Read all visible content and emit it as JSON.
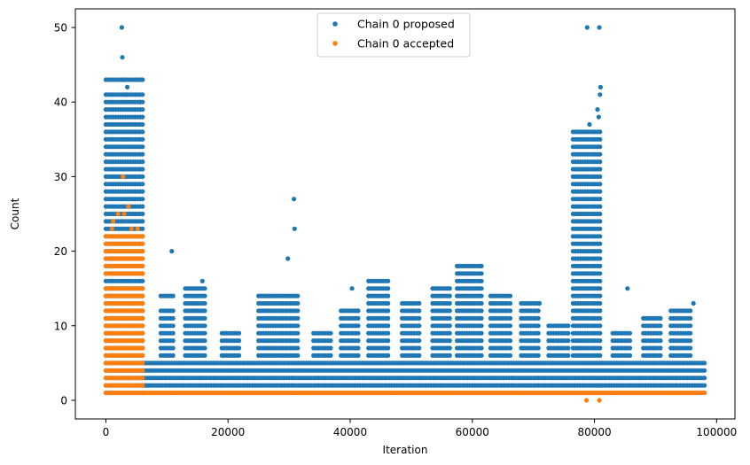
{
  "chart_data": {
    "type": "scatter",
    "title": "",
    "xlabel": "Iteration",
    "ylabel": "Count",
    "xlim": [
      -5000,
      103000
    ],
    "ylim": [
      -2.5,
      52.5
    ],
    "xticks": [
      0,
      20000,
      40000,
      60000,
      80000,
      100000
    ],
    "yticks": [
      0,
      10,
      20,
      30,
      40,
      50
    ],
    "grid": false,
    "legend_position": "top-center",
    "series": [
      {
        "name": "Chain 0 proposed",
        "color": "#1f77b4",
        "clusters": [
          {
            "x_start": 0,
            "x_end": 6000,
            "y_values": [
              1,
              2,
              3,
              4,
              5,
              6,
              7,
              8,
              9,
              10,
              11,
              12,
              13,
              14,
              15,
              16,
              17,
              18,
              19,
              20,
              21,
              22,
              23,
              24,
              25,
              26,
              27,
              28,
              29,
              30,
              31,
              32,
              33,
              34,
              35,
              36,
              37,
              38,
              39,
              40,
              41,
              43
            ]
          },
          {
            "x_start": 6000,
            "x_end": 98000,
            "y_values": [
              1,
              2,
              3,
              4,
              5
            ]
          },
          {
            "x_start": 9000,
            "x_end": 11000,
            "y_values": [
              6,
              7,
              8,
              9,
              10,
              11,
              12,
              14
            ]
          },
          {
            "x_start": 13000,
            "x_end": 16500,
            "y_values": [
              6,
              7,
              8,
              9,
              10,
              11,
              12,
              13,
              14,
              15
            ]
          },
          {
            "x_start": 19000,
            "x_end": 22000,
            "y_values": [
              6,
              7,
              8,
              9
            ]
          },
          {
            "x_start": 25000,
            "x_end": 31500,
            "y_values": [
              6,
              7,
              8,
              9,
              10,
              11,
              12,
              13,
              14
            ]
          },
          {
            "x_start": 34000,
            "x_end": 37000,
            "y_values": [
              6,
              7,
              8,
              9
            ]
          },
          {
            "x_start": 38500,
            "x_end": 41500,
            "y_values": [
              6,
              7,
              8,
              9,
              10,
              11,
              12
            ]
          },
          {
            "x_start": 43000,
            "x_end": 46500,
            "y_values": [
              6,
              7,
              8,
              9,
              10,
              11,
              12,
              13,
              14,
              15,
              16
            ]
          },
          {
            "x_start": 48500,
            "x_end": 51500,
            "y_values": [
              6,
              7,
              8,
              9,
              10,
              11,
              12,
              13
            ]
          },
          {
            "x_start": 53500,
            "x_end": 56500,
            "y_values": [
              6,
              7,
              8,
              9,
              10,
              11,
              12,
              13,
              14,
              15
            ]
          },
          {
            "x_start": 57500,
            "x_end": 61500,
            "y_values": [
              6,
              7,
              8,
              9,
              10,
              11,
              12,
              13,
              14,
              15,
              16,
              17,
              18
            ]
          },
          {
            "x_start": 63000,
            "x_end": 66500,
            "y_values": [
              6,
              7,
              8,
              9,
              10,
              11,
              12,
              13,
              14
            ]
          },
          {
            "x_start": 68000,
            "x_end": 71000,
            "y_values": [
              6,
              7,
              8,
              9,
              10,
              11,
              12,
              13
            ]
          },
          {
            "x_start": 72500,
            "x_end": 76000,
            "y_values": [
              6,
              7,
              8,
              9,
              10
            ]
          },
          {
            "x_start": 76500,
            "x_end": 81000,
            "y_values": [
              6,
              7,
              8,
              9,
              10,
              11,
              12,
              13,
              14,
              15,
              16,
              17,
              18,
              19,
              20,
              21,
              22,
              23,
              24,
              25,
              26,
              27,
              28,
              29,
              30,
              31,
              32,
              33,
              34,
              35,
              36
            ]
          },
          {
            "x_start": 83000,
            "x_end": 86000,
            "y_values": [
              6,
              7,
              8,
              9
            ]
          },
          {
            "x_start": 88000,
            "x_end": 91000,
            "y_values": [
              6,
              7,
              8,
              9,
              10,
              11
            ]
          },
          {
            "x_start": 92500,
            "x_end": 96000,
            "y_values": [
              6,
              7,
              8,
              9,
              10,
              11,
              12
            ]
          }
        ],
        "outliers": [
          {
            "x": 2600,
            "y": 50
          },
          {
            "x": 2700,
            "y": 46
          },
          {
            "x": 2900,
            "y": 43
          },
          {
            "x": 5800,
            "y": 43
          },
          {
            "x": 3500,
            "y": 42
          },
          {
            "x": 3300,
            "y": 41
          },
          {
            "x": 5600,
            "y": 40
          },
          {
            "x": 10800,
            "y": 20
          },
          {
            "x": 15800,
            "y": 16
          },
          {
            "x": 29800,
            "y": 19
          },
          {
            "x": 30800,
            "y": 27
          },
          {
            "x": 30900,
            "y": 23
          },
          {
            "x": 40300,
            "y": 15
          },
          {
            "x": 71000,
            "y": 13
          },
          {
            "x": 78800,
            "y": 50
          },
          {
            "x": 80800,
            "y": 50
          },
          {
            "x": 81000,
            "y": 42
          },
          {
            "x": 80900,
            "y": 41
          },
          {
            "x": 80500,
            "y": 39
          },
          {
            "x": 80700,
            "y": 38
          },
          {
            "x": 79200,
            "y": 37
          },
          {
            "x": 85400,
            "y": 15
          },
          {
            "x": 96200,
            "y": 13
          }
        ]
      },
      {
        "name": "Chain 0 accepted",
        "color": "#ff7f0e",
        "clusters": [
          {
            "x_start": 0,
            "x_end": 6000,
            "y_values": [
              1,
              2,
              3,
              4,
              5,
              6,
              7,
              8,
              9,
              10,
              11,
              12,
              13,
              14,
              15,
              17,
              18,
              19,
              20,
              21,
              22
            ]
          },
          {
            "x_start": 6000,
            "x_end": 98000,
            "y_values": [
              1
            ]
          }
        ],
        "outliers": [
          {
            "x": 2800,
            "y": 30
          },
          {
            "x": 3000,
            "y": 25
          },
          {
            "x": 3700,
            "y": 26
          },
          {
            "x": 1200,
            "y": 24
          },
          {
            "x": 5200,
            "y": 23
          },
          {
            "x": 1000,
            "y": 23
          },
          {
            "x": 2000,
            "y": 25
          },
          {
            "x": 4200,
            "y": 23
          },
          {
            "x": 78700,
            "y": 0
          },
          {
            "x": 80800,
            "y": 0
          }
        ]
      }
    ]
  }
}
